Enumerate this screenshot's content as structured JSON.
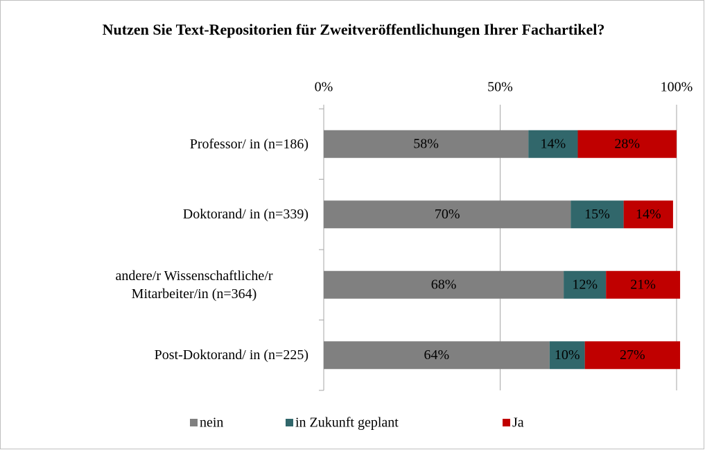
{
  "chart_data": {
    "type": "stacked-bar-horizontal",
    "title": "Nutzen Sie Text-Repositorien für Zweitveröffentlichungen Ihrer Fachartikel?",
    "categories": [
      "Professor/ in (n=186)",
      "Doktorand/ in (n=339)",
      "andere/r Wissenschaftliche/r Mitarbeiter/in (n=364)",
      "Post-Doktorand/ in (n=225)"
    ],
    "series": [
      {
        "name": "nein",
        "color": "#808080",
        "values": [
          58,
          70,
          68,
          64
        ],
        "value_labels": [
          "58%",
          "70%",
          "68%",
          "64%"
        ]
      },
      {
        "name": "in Zukunft geplant",
        "color": "#31676b",
        "values": [
          14,
          15,
          12,
          10
        ],
        "value_labels": [
          "14%",
          "15%",
          "12%",
          "10%"
        ]
      },
      {
        "name": "Ja",
        "color": "#c00000",
        "values": [
          28,
          14,
          21,
          27
        ],
        "value_labels": [
          "28%",
          "14%",
          "21%",
          "27%"
        ]
      }
    ],
    "xlim": [
      0,
      100
    ],
    "xticks": [
      {
        "value": 0,
        "label": "0%"
      },
      {
        "value": 50,
        "label": "50%"
      },
      {
        "value": 100,
        "label": "100%"
      }
    ],
    "grid": true,
    "legend": "bottom"
  }
}
